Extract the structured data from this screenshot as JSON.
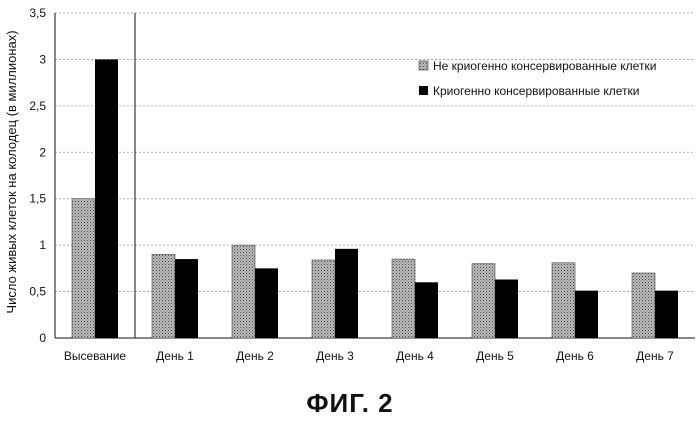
{
  "caption": "ФИГ. 2",
  "chart_data": {
    "type": "bar",
    "title": "",
    "xlabel": "",
    "ylabel": "Число живых клеток на колодец (в миллионах)",
    "ylim": [
      0,
      3.5
    ],
    "yticks": [
      "0",
      "0,5",
      "1",
      "1,5",
      "2",
      "2,5",
      "3",
      "3,5"
    ],
    "grid": true,
    "legend_position": "top-right",
    "categories": [
      "Высевание",
      "День 1",
      "День 2",
      "День 3",
      "День 4",
      "День 5",
      "День 6",
      "День 7"
    ],
    "series": [
      {
        "name": "Не криогенно консервированные клетки",
        "color": "#9a9a9a",
        "pattern": "dotted-grey",
        "values": [
          1.5,
          0.9,
          1.0,
          0.84,
          0.85,
          0.8,
          0.81,
          0.7
        ]
      },
      {
        "name": "Криогенно консервированные клетки",
        "color": "#000000",
        "pattern": "solid-black",
        "values": [
          3.0,
          0.85,
          0.75,
          0.96,
          0.6,
          0.63,
          0.51,
          0.51
        ]
      }
    ]
  }
}
